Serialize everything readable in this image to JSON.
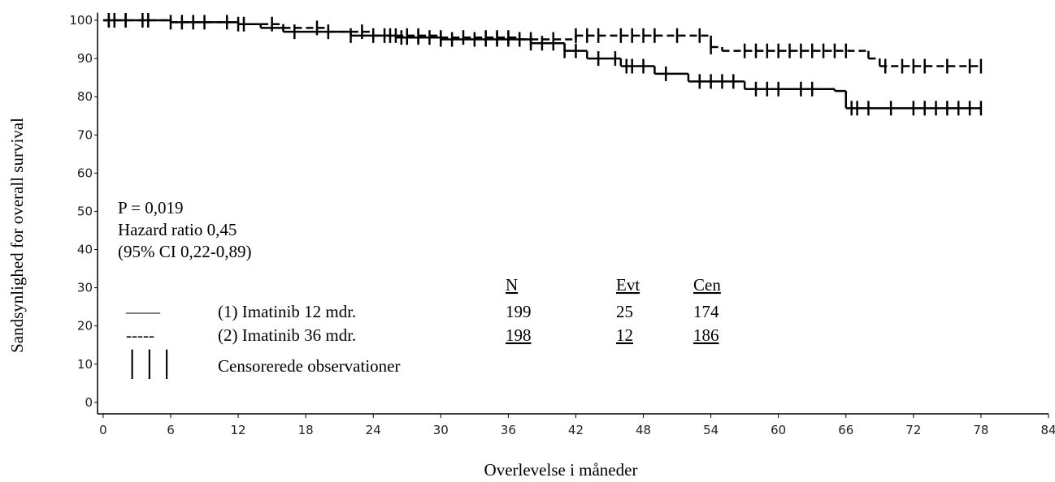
{
  "chart_data": {
    "type": "km",
    "y_label": "Sandsynlighed for overall survival",
    "x_label": "Overlevelse i måneder",
    "xlim": [
      -0.5,
      84
    ],
    "xticks": [
      0,
      6,
      12,
      18,
      24,
      30,
      36,
      42,
      48,
      54,
      60,
      66,
      72,
      78,
      84
    ],
    "ylim": [
      -3,
      102
    ],
    "yticks": [
      0,
      10,
      20,
      30,
      40,
      50,
      60,
      70,
      80,
      90,
      100
    ],
    "annotations": [
      "P = 0,019",
      "Hazard ratio 0,45",
      "(95% CI 0,22-0,89)"
    ],
    "series": [
      {
        "name": "(1) Imatinib 12 mdr.",
        "legend_symbol": "——",
        "color": "#000000",
        "dash": false,
        "x": [
          0,
          6,
          12,
          14,
          16,
          22,
          26,
          30,
          38,
          41,
          43,
          46,
          49,
          52,
          57,
          65,
          66,
          78
        ],
        "values": [
          100,
          99.5,
          99,
          98,
          97,
          96,
          95.5,
          95,
          94,
          92,
          90,
          88,
          86,
          84,
          82,
          81.5,
          77,
          77
        ],
        "censored": [
          0.5,
          1,
          2,
          3.5,
          6,
          8,
          11,
          12.5,
          17,
          20,
          22,
          24,
          25.5,
          26.5,
          27,
          28,
          29,
          30,
          31,
          33,
          34,
          35,
          36,
          37,
          38,
          39,
          40,
          41,
          42,
          44,
          45.5,
          46.5,
          47,
          48,
          50,
          53,
          54,
          55,
          56,
          58,
          59,
          60,
          62,
          63,
          66.5,
          67,
          68,
          70,
          72,
          73,
          74,
          75,
          76,
          77,
          78
        ]
      },
      {
        "name": "(2) Imatinib 36 mdr.",
        "legend_symbol": "-----",
        "color": "#000000",
        "dash": true,
        "x": [
          0,
          6,
          12,
          16,
          20,
          24,
          30,
          37,
          42,
          54,
          55,
          68,
          69,
          78
        ],
        "values": [
          100,
          99.5,
          99,
          98,
          97,
          96,
          95.5,
          95,
          96,
          93,
          92,
          90,
          88,
          88
        ],
        "censored": [
          0.5,
          1,
          2,
          4,
          7,
          9,
          12,
          15,
          19,
          23,
          25,
          26,
          27,
          28,
          30,
          32,
          34,
          35,
          36,
          37,
          38,
          40,
          42,
          43,
          44,
          46,
          47,
          48,
          49,
          51,
          53,
          54,
          57,
          58,
          59,
          60,
          61,
          62,
          63,
          64,
          65,
          66,
          69.5,
          71,
          72,
          73,
          75,
          77,
          78
        ]
      }
    ],
    "censor_legend": {
      "symbol": "│││",
      "label": "Censorerede observationer"
    },
    "table": {
      "columns": [
        "N",
        "Evt",
        "Cen"
      ],
      "rows": [
        [
          199,
          25,
          174
        ],
        [
          198,
          12,
          186
        ]
      ]
    }
  }
}
